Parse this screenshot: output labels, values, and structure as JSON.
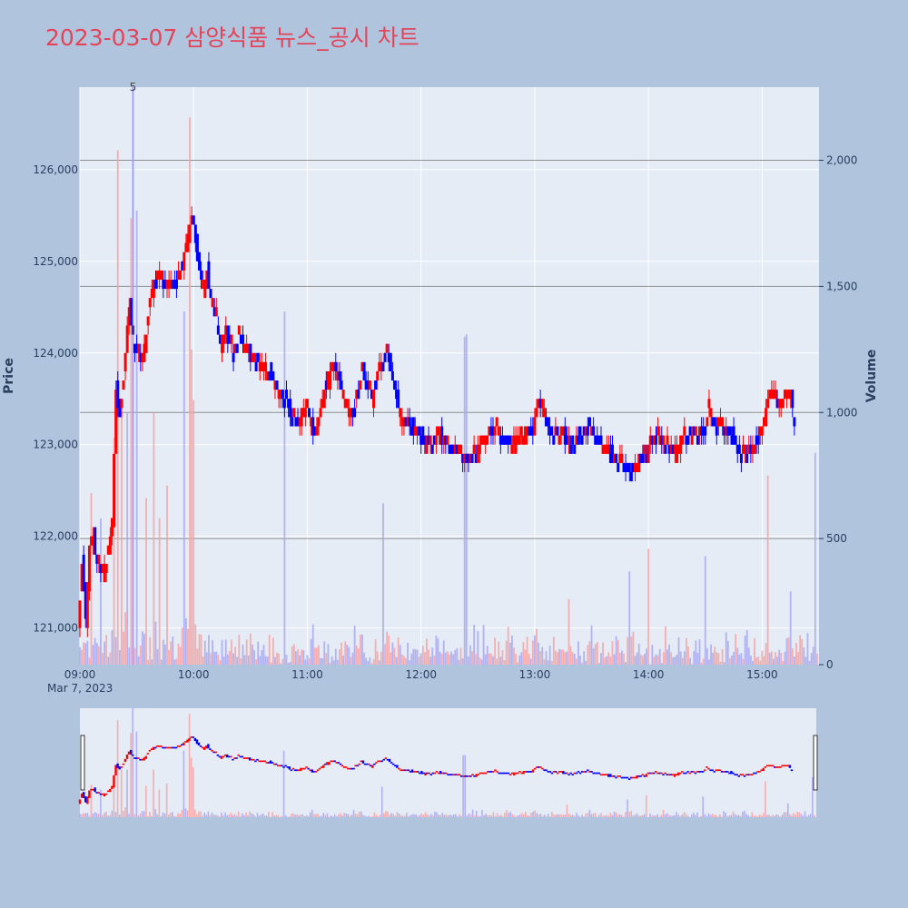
{
  "chart_data": {
    "type": "candlestick",
    "title": "2023-03-07 삼양식품 뉴스_공시 차트",
    "ylabel": "Price",
    "y2label": "Volume",
    "date_label": "Mar 7, 2023",
    "x_ticks": [
      "09:00",
      "10:00",
      "11:00",
      "12:00",
      "13:00",
      "14:00",
      "15:00"
    ],
    "y_ticks": [
      "121,000",
      "122,000",
      "123,000",
      "124,000",
      "125,000",
      "126,000"
    ],
    "y_tick_values": [
      121000,
      122000,
      123000,
      124000,
      125000,
      126000
    ],
    "y2_ticks": [
      "0",
      "500",
      "1,000",
      "1,500",
      "2,000"
    ],
    "y2_tick_values": [
      0,
      500,
      1000,
      1500,
      2000
    ],
    "ylim": [
      120600,
      126900
    ],
    "y2lim": [
      0,
      2290
    ],
    "x_start": "09:00",
    "x_end": "15:30",
    "news_marker": {
      "time": "09:28",
      "label": "5"
    },
    "volume_reference_lines": [
      500,
      1000,
      1500,
      2000
    ],
    "up_color": "#ff0000",
    "down_color": "#0000ff",
    "price_path": [
      [
        "09:00",
        121000
      ],
      [
        "09:02",
        121700
      ],
      [
        "09:04",
        121100
      ],
      [
        "09:06",
        121900
      ],
      [
        "09:08",
        122000
      ],
      [
        "09:10",
        121700
      ],
      [
        "09:12",
        121600
      ],
      [
        "09:15",
        121700
      ],
      [
        "09:18",
        122200
      ],
      [
        "09:20",
        123600
      ],
      [
        "09:22",
        123300
      ],
      [
        "09:25",
        124000
      ],
      [
        "09:27",
        124500
      ],
      [
        "09:29",
        124200
      ],
      [
        "09:31",
        124000
      ],
      [
        "09:34",
        123900
      ],
      [
        "09:37",
        124400
      ],
      [
        "09:40",
        124800
      ],
      [
        "09:43",
        124900
      ],
      [
        "09:46",
        124700
      ],
      [
        "09:49",
        124800
      ],
      [
        "09:52",
        124700
      ],
      [
        "09:55",
        125000
      ],
      [
        "09:58",
        125300
      ],
      [
        "10:00",
        125500
      ],
      [
        "10:02",
        125200
      ],
      [
        "10:04",
        124900
      ],
      [
        "10:06",
        124700
      ],
      [
        "10:08",
        124900
      ],
      [
        "10:10",
        124600
      ],
      [
        "10:12",
        124500
      ],
      [
        "10:15",
        124100
      ],
      [
        "10:18",
        124200
      ],
      [
        "10:22",
        124000
      ],
      [
        "10:25",
        124200
      ],
      [
        "10:30",
        124000
      ],
      [
        "10:35",
        123900
      ],
      [
        "10:40",
        123800
      ],
      [
        "10:45",
        123600
      ],
      [
        "10:50",
        123500
      ],
      [
        "10:55",
        123200
      ],
      [
        "11:00",
        123400
      ],
      [
        "11:05",
        123100
      ],
      [
        "11:10",
        123600
      ],
      [
        "11:15",
        123900
      ],
      [
        "11:20",
        123500
      ],
      [
        "11:25",
        123300
      ],
      [
        "11:30",
        123800
      ],
      [
        "11:35",
        123500
      ],
      [
        "11:40",
        123900
      ],
      [
        "11:43",
        124000
      ],
      [
        "11:46",
        123700
      ],
      [
        "11:50",
        123300
      ],
      [
        "11:55",
        123200
      ],
      [
        "12:00",
        123100
      ],
      [
        "12:05",
        123000
      ],
      [
        "12:10",
        123100
      ],
      [
        "12:15",
        123000
      ],
      [
        "12:20",
        122900
      ],
      [
        "12:25",
        122800
      ],
      [
        "12:30",
        122900
      ],
      [
        "12:35",
        123100
      ],
      [
        "12:40",
        123200
      ],
      [
        "12:45",
        123000
      ],
      [
        "12:50",
        123000
      ],
      [
        "12:55",
        123100
      ],
      [
        "13:00",
        123200
      ],
      [
        "13:03",
        123500
      ],
      [
        "13:06",
        123300
      ],
      [
        "13:10",
        123100
      ],
      [
        "13:15",
        123100
      ],
      [
        "13:20",
        123000
      ],
      [
        "13:25",
        123100
      ],
      [
        "13:30",
        123200
      ],
      [
        "13:35",
        123000
      ],
      [
        "13:40",
        122900
      ],
      [
        "13:45",
        122800
      ],
      [
        "13:50",
        122700
      ],
      [
        "13:55",
        122800
      ],
      [
        "14:00",
        122900
      ],
      [
        "14:05",
        123100
      ],
      [
        "14:10",
        123000
      ],
      [
        "14:15",
        122900
      ],
      [
        "14:20",
        123100
      ],
      [
        "14:25",
        123100
      ],
      [
        "14:30",
        123200
      ],
      [
        "14:33",
        123400
      ],
      [
        "14:36",
        123200
      ],
      [
        "14:40",
        123200
      ],
      [
        "14:45",
        123100
      ],
      [
        "14:50",
        122900
      ],
      [
        "14:55",
        122900
      ],
      [
        "15:00",
        123100
      ],
      [
        "15:03",
        123400
      ],
      [
        "15:06",
        123600
      ],
      [
        "15:10",
        123400
      ],
      [
        "15:13",
        123500
      ],
      [
        "15:16",
        123500
      ],
      [
        "15:18",
        123300
      ]
    ],
    "volume_spikes": [
      {
        "time": "09:06",
        "value": 680,
        "dir": "up"
      },
      {
        "time": "09:11",
        "value": 580,
        "dir": "down"
      },
      {
        "time": "09:18",
        "value": 900,
        "dir": "up"
      },
      {
        "time": "09:20",
        "value": 2040,
        "dir": "up"
      },
      {
        "time": "09:22",
        "value": 1000,
        "dir": "up"
      },
      {
        "time": "09:25",
        "value": 1000,
        "dir": "down"
      },
      {
        "time": "09:27",
        "value": 1770,
        "dir": "up"
      },
      {
        "time": "09:28",
        "value": 2290,
        "dir": "down"
      },
      {
        "time": "09:30",
        "value": 1800,
        "dir": "down"
      },
      {
        "time": "09:35",
        "value": 660,
        "dir": "up"
      },
      {
        "time": "09:39",
        "value": 1000,
        "dir": "up"
      },
      {
        "time": "09:42",
        "value": 580,
        "dir": "up"
      },
      {
        "time": "09:46",
        "value": 710,
        "dir": "up"
      },
      {
        "time": "09:55",
        "value": 1400,
        "dir": "down"
      },
      {
        "time": "09:58",
        "value": 2170,
        "dir": "up"
      },
      {
        "time": "09:59",
        "value": 1250,
        "dir": "up"
      },
      {
        "time": "10:00",
        "value": 1050,
        "dir": "up"
      },
      {
        "time": "10:48",
        "value": 1400,
        "dir": "down"
      },
      {
        "time": "11:40",
        "value": 640,
        "dir": "down"
      },
      {
        "time": "12:23",
        "value": 1300,
        "dir": "down"
      },
      {
        "time": "12:24",
        "value": 1310,
        "dir": "down"
      },
      {
        "time": "13:18",
        "value": 260,
        "dir": "up"
      },
      {
        "time": "13:50",
        "value": 370,
        "dir": "down"
      },
      {
        "time": "14:00",
        "value": 460,
        "dir": "up"
      },
      {
        "time": "14:30",
        "value": 430,
        "dir": "down"
      },
      {
        "time": "15:03",
        "value": 750,
        "dir": "up"
      },
      {
        "time": "15:15",
        "value": 290,
        "dir": "down"
      },
      {
        "time": "15:28",
        "value": 840,
        "dir": "down"
      }
    ]
  }
}
